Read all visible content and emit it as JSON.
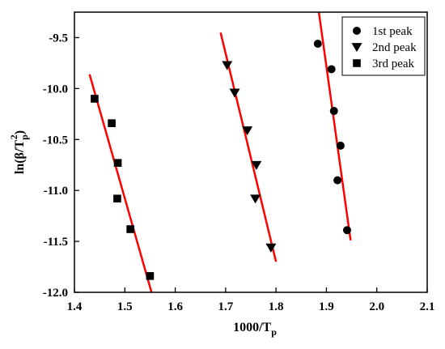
{
  "chart_data": {
    "type": "scatter",
    "xlabel_main": "1000/T",
    "xlabel_sub": "p",
    "ylabel_prefix": "ln(β/T",
    "ylabel_sub": "p",
    "ylabel_sup": "2",
    "ylabel_suffix": ")",
    "xlim": [
      1.4,
      2.1
    ],
    "ylim": [
      -12.0,
      -9.25
    ],
    "xticks": [
      1.4,
      1.5,
      1.6,
      1.7,
      1.8,
      1.9,
      2.0,
      2.1
    ],
    "xtick_labels": [
      "1.4",
      "1.5",
      "1.6",
      "1.7",
      "1.8",
      "1.9",
      "2.0",
      "2.1"
    ],
    "yticks": [
      -12.0,
      -11.5,
      -11.0,
      -10.5,
      -10.0,
      -9.5
    ],
    "ytick_labels": [
      "-12.0",
      "-11.5",
      "-11.0",
      "-10.5",
      "-10.0",
      "-9.5"
    ],
    "legend_position": "top-right",
    "fit_color": "#ff0000",
    "marker_color": "#000000",
    "series": [
      {
        "name": "1st peak",
        "marker": "circle",
        "x": [
          1.883,
          1.91,
          1.915,
          1.928,
          1.922,
          1.941
        ],
        "y": [
          -9.56,
          -9.81,
          -10.22,
          -10.56,
          -10.9,
          -11.39
        ],
        "fit": [
          [
            1.885,
            -9.25
          ],
          [
            1.948,
            -11.49
          ]
        ]
      },
      {
        "name": "2nd peak",
        "marker": "triangle-down",
        "x": [
          1.703,
          1.718,
          1.743,
          1.761,
          1.759,
          1.79
        ],
        "y": [
          -9.77,
          -10.04,
          -10.41,
          -10.75,
          -11.08,
          -11.56
        ],
        "fit": [
          [
            1.69,
            -9.45
          ],
          [
            1.8,
            -11.7
          ]
        ]
      },
      {
        "name": "3rd peak",
        "marker": "square",
        "x": [
          1.44,
          1.474,
          1.486,
          1.485,
          1.511,
          1.55
        ],
        "y": [
          -10.1,
          -10.34,
          -10.73,
          -11.08,
          -11.38,
          -11.84
        ],
        "fit": [
          [
            1.43,
            -9.86
          ],
          [
            1.553,
            -12.0
          ]
        ]
      }
    ]
  }
}
